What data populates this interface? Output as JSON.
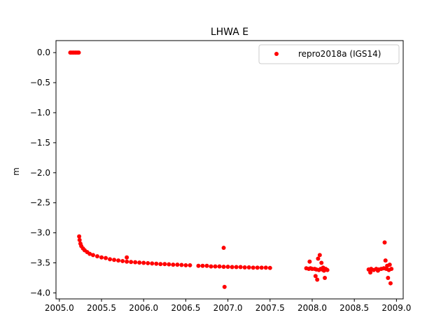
{
  "chart_data": {
    "type": "scatter",
    "title": "LHWA E",
    "xlabel": "",
    "ylabel": "m",
    "xlim": [
      2004.96,
      2009.08
    ],
    "ylim": [
      -4.1,
      0.2
    ],
    "xticks": [
      2005.0,
      2005.5,
      2006.0,
      2006.5,
      2007.0,
      2007.5,
      2008.0,
      2008.5,
      2009.0
    ],
    "xtick_labels": [
      "2005.0",
      "2005.5",
      "2006.0",
      "2006.5",
      "2007.0",
      "2007.5",
      "2008.0",
      "2008.5",
      "2009.0"
    ],
    "yticks": [
      0.0,
      -0.5,
      -1.0,
      -1.5,
      -2.0,
      -2.5,
      -3.0,
      -3.5,
      -4.0
    ],
    "ytick_labels": [
      "0.0",
      "−0.5",
      "−1.0",
      "−1.5",
      "−2.0",
      "−2.5",
      "−3.0",
      "−3.5",
      "−4.0"
    ],
    "grid": false,
    "legend": "top-right",
    "colors": {
      "series": "#ff0000",
      "axis": "#000000"
    },
    "series": [
      {
        "name": "repro2018a (IGS14)",
        "marker": "circle",
        "x": [
          2005.13,
          2005.15,
          2005.17,
          2005.19,
          2005.21,
          2005.23,
          2005.235,
          2005.24,
          2005.25,
          2005.26,
          2005.28,
          2005.3,
          2005.33,
          2005.36,
          2005.4,
          2005.45,
          2005.5,
          2005.55,
          2005.6,
          2005.65,
          2005.7,
          2005.75,
          2005.8,
          2005.85,
          2005.9,
          2005.95,
          2006.0,
          2006.05,
          2006.1,
          2006.15,
          2006.2,
          2006.25,
          2006.3,
          2006.35,
          2006.4,
          2006.45,
          2006.5,
          2006.55,
          2005.8,
          2006.65,
          2006.7,
          2006.75,
          2006.8,
          2006.85,
          2006.9,
          2006.95,
          2007.0,
          2007.05,
          2007.1,
          2007.15,
          2007.2,
          2007.25,
          2007.3,
          2007.35,
          2007.4,
          2007.45,
          2007.5,
          2006.95,
          2006.96,
          2007.93,
          2007.96,
          2007.98,
          2008.0,
          2008.03,
          2008.05,
          2008.08,
          2008.1,
          2008.12,
          2008.14,
          2008.16,
          2008.18,
          2007.97,
          2008.04,
          2008.07,
          2008.09,
          2008.11,
          2008.13,
          2008.06,
          2008.15,
          2008.67,
          2008.7,
          2008.73,
          2008.76,
          2008.79,
          2008.82,
          2008.85,
          2008.88,
          2008.91,
          2008.94,
          2008.87,
          2008.89,
          2008.92,
          2008.69,
          2008.78,
          2008.86,
          2008.9,
          2008.93
        ],
        "y": [
          0.0,
          0.0,
          0.0,
          0.0,
          0.0,
          0.0,
          -3.06,
          -3.12,
          -3.18,
          -3.22,
          -3.26,
          -3.29,
          -3.32,
          -3.35,
          -3.37,
          -3.39,
          -3.41,
          -3.42,
          -3.44,
          -3.45,
          -3.46,
          -3.47,
          -3.48,
          -3.485,
          -3.49,
          -3.495,
          -3.5,
          -3.505,
          -3.51,
          -3.515,
          -3.52,
          -3.52,
          -3.525,
          -3.53,
          -3.53,
          -3.535,
          -3.54,
          -3.54,
          -3.41,
          -3.55,
          -3.55,
          -3.55,
          -3.56,
          -3.56,
          -3.56,
          -3.565,
          -3.565,
          -3.57,
          -3.57,
          -3.57,
          -3.575,
          -3.575,
          -3.58,
          -3.58,
          -3.58,
          -3.58,
          -3.585,
          -3.25,
          -3.9,
          -3.59,
          -3.6,
          -3.59,
          -3.6,
          -3.6,
          -3.61,
          -3.62,
          -3.6,
          -3.61,
          -3.63,
          -3.6,
          -3.62,
          -3.48,
          -3.72,
          -3.43,
          -3.37,
          -3.5,
          -3.58,
          -3.78,
          -3.75,
          -3.61,
          -3.6,
          -3.62,
          -3.6,
          -3.61,
          -3.6,
          -3.59,
          -3.6,
          -3.62,
          -3.6,
          -3.46,
          -3.55,
          -3.53,
          -3.66,
          -3.63,
          -3.16,
          -3.75,
          -3.84
        ]
      }
    ]
  }
}
